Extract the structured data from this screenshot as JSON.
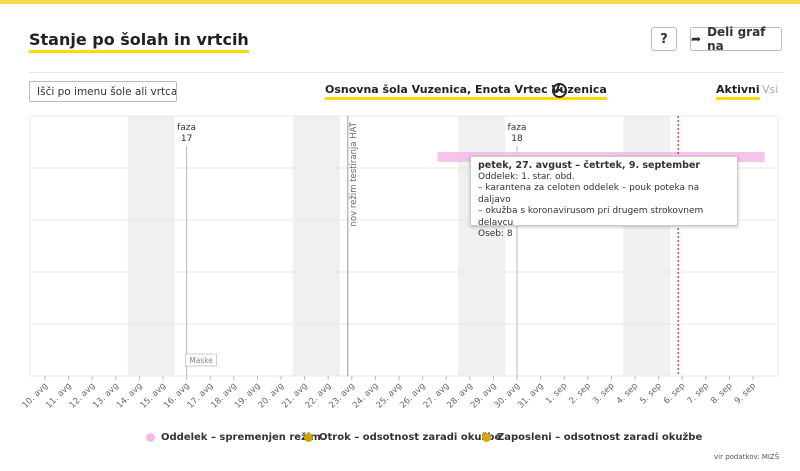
{
  "header": {
    "title": "Stanje po šolah in vrtcih",
    "help_label": "?",
    "share_label": "Deli graf na",
    "share_icon": "share-arrow-icon"
  },
  "toolbar": {
    "search_placeholder": "Išči po imenu šole ali vrtca",
    "selected_school": "Osnovna šola Vuzenica, Enota Vrtec Vuzenica",
    "clear_icon": "close-circle-icon",
    "tab_active": "Aktivni",
    "tab_all": "Vsi"
  },
  "colors": {
    "accent": "#ffd900",
    "legend_oddelek": "#f5b8e6",
    "legend_otrok": "#c9a400",
    "legend_zaposleni": "#d9a900",
    "today_line": "#e02020",
    "weekend_shade": "#f0f0f0"
  },
  "chart_data": {
    "type": "timeline",
    "x": [
      "10. avg",
      "11. avg",
      "12. avg",
      "13. avg",
      "14. avg",
      "15. avg",
      "16. avg",
      "17. avg",
      "18. avg",
      "19. avg",
      "20. avg",
      "21. avg",
      "22. avg",
      "23. avg",
      "24. avg",
      "25. avg",
      "26. avg",
      "27. avg",
      "28. avg",
      "29. avg",
      "30. avg",
      "31. avg",
      "1. sep",
      "2. sep",
      "3. sep",
      "4. sep",
      "5. sep",
      "6. sep",
      "7. sep",
      "8. sep",
      "9. sep"
    ],
    "weekends": [
      [
        4,
        5
      ],
      [
        11,
        12
      ],
      [
        18,
        19
      ],
      [
        25,
        26
      ]
    ],
    "phases": [
      {
        "line1": "faza",
        "line2": "17",
        "day_index": 6
      },
      {
        "line1": "faza",
        "line2": "18",
        "day_index": 20
      }
    ],
    "annotations": [
      {
        "text": "nov režim testiranja HAT",
        "day_index": 13
      },
      {
        "text": "Maske",
        "day_index": 6
      }
    ],
    "today_index": 27,
    "bars": [
      {
        "series": "Oddelek – spremenjen režim",
        "start_index": 17,
        "end_index": 30,
        "row": 0
      }
    ],
    "legend_position": "bottom",
    "legend": [
      "Oddelek – spremenjen režim",
      "Otrok – odsotnost zaradi okužbe",
      "Zaposleni – odsotnost zaradi okužbe"
    ]
  },
  "tooltip": {
    "title": "petek, 27. avgust – četrtek, 9. september",
    "lines": [
      "Oddelek: 1. star. obd.",
      "– karantena za celoten oddelek – pouk poteka na daljavo",
      "– okužba s koronavirusom pri drugem strokovnem delavcu",
      "Oseb: 8"
    ]
  },
  "footer": {
    "source": "vir podatkov: MIZŠ"
  }
}
